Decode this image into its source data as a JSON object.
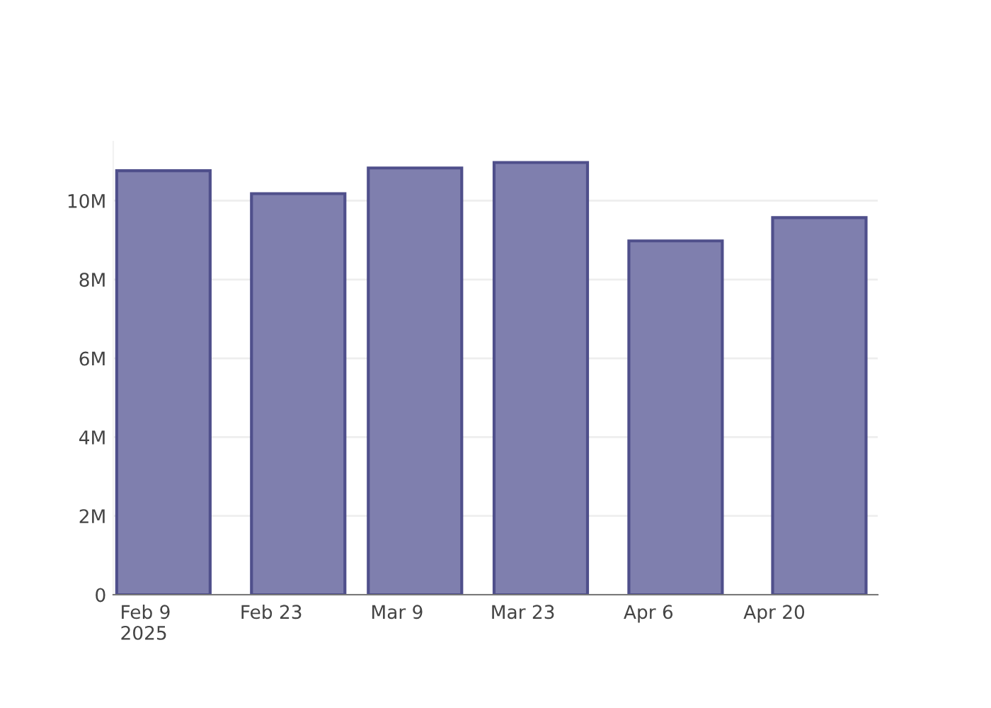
{
  "chart_data": {
    "type": "bar",
    "x": [
      "2025-02-11",
      "2025-02-26",
      "2025-03-11",
      "2025-03-25",
      "2025-04-09",
      "2025-04-25"
    ],
    "series": [
      {
        "color": "#7f7fae",
        "values": [
          10760000,
          10180000,
          10830000,
          10970000,
          8980000,
          9570000
        ]
      }
    ],
    "xlim": [
      "2025-02-05T10:00",
      "2025-05-01T12:00"
    ],
    "xticks": [
      {
        "value": "2025-02-09",
        "label": "Feb 9\n2025"
      },
      {
        "value": "2025-02-23",
        "label": "Feb 23"
      },
      {
        "value": "2025-03-09",
        "label": "Mar 9"
      },
      {
        "value": "2025-03-23",
        "label": "Mar 23"
      },
      {
        "value": "2025-04-06",
        "label": "Apr 6"
      },
      {
        "value": "2025-04-20",
        "label": "Apr 20"
      }
    ],
    "yticks": [
      {
        "value": 0,
        "label": "0"
      },
      {
        "value": 2000000,
        "label": "2M"
      },
      {
        "value": 4000000,
        "label": "4M"
      },
      {
        "value": 6000000,
        "label": "6M"
      },
      {
        "value": 8000000,
        "label": "8M"
      },
      {
        "value": 10000000,
        "label": "10M"
      }
    ],
    "ylim": [
      0,
      11500000
    ],
    "grid": "y"
  }
}
